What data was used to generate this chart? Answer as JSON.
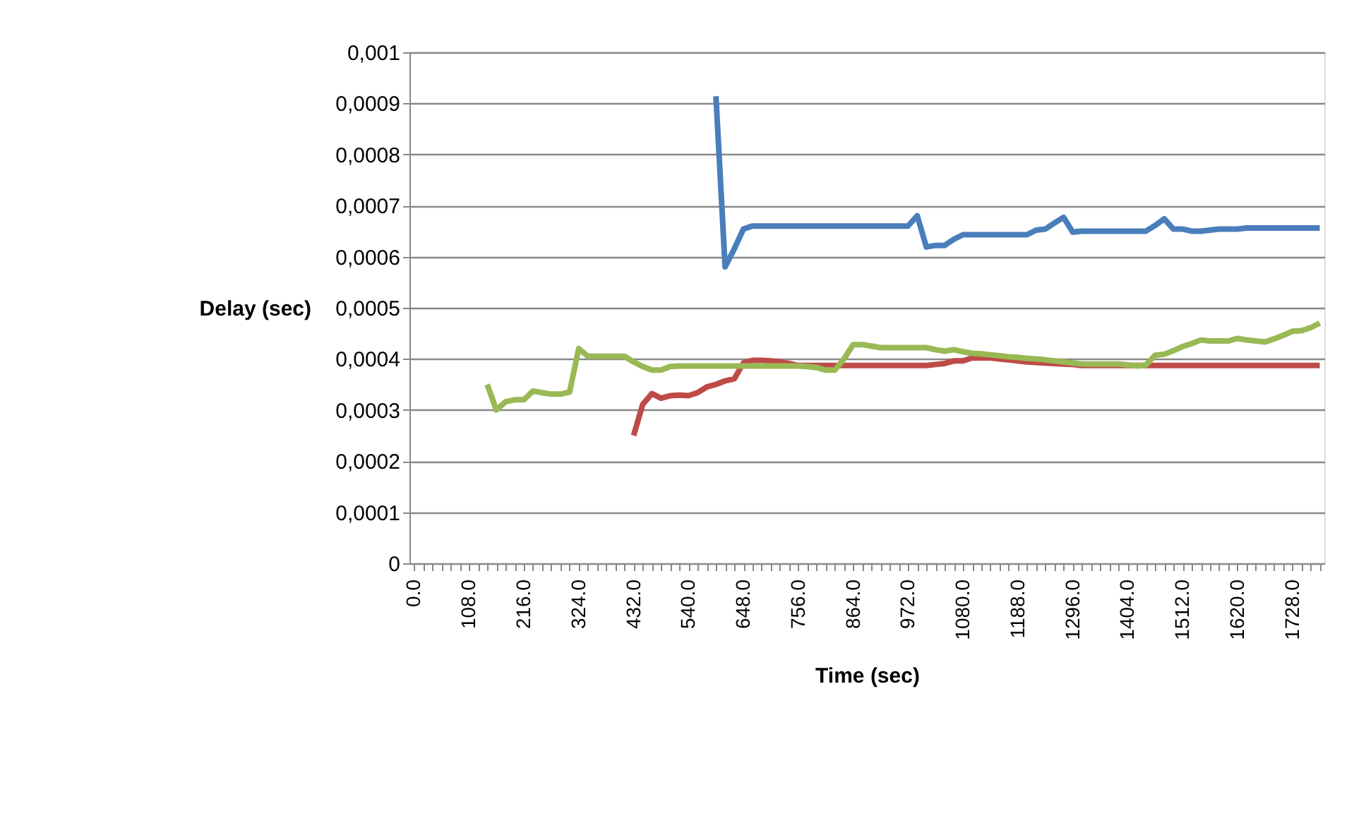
{
  "chart_data": {
    "type": "line",
    "xlabel": "Time (sec)",
    "ylabel": "Delay (sec)",
    "categories": [
      "0.0",
      null,
      null,
      null,
      null,
      null,
      "108.0",
      null,
      null,
      null,
      null,
      null,
      "216.0",
      null,
      null,
      null,
      null,
      null,
      "324.0",
      null,
      null,
      null,
      null,
      null,
      "432.0",
      null,
      null,
      null,
      null,
      null,
      "540.0",
      null,
      null,
      null,
      null,
      null,
      "648.0",
      null,
      null,
      null,
      null,
      null,
      "756.0",
      null,
      null,
      null,
      null,
      null,
      "864.0",
      null,
      null,
      null,
      null,
      null,
      "972.0",
      null,
      null,
      null,
      null,
      null,
      "1080.0",
      null,
      null,
      null,
      null,
      null,
      "1188.0",
      null,
      null,
      null,
      null,
      null,
      "1296.0",
      null,
      null,
      null,
      null,
      null,
      "1404.0",
      null,
      null,
      null,
      null,
      null,
      "1512.0",
      null,
      null,
      null,
      null,
      null,
      "1620.0",
      null,
      null,
      null,
      null,
      null,
      "1728.0",
      null,
      null,
      null
    ],
    "series": [
      {
        "color": "#4a7ebb",
        "values": [
          null,
          null,
          null,
          null,
          null,
          null,
          null,
          null,
          null,
          null,
          null,
          null,
          null,
          null,
          null,
          null,
          null,
          null,
          null,
          null,
          null,
          null,
          null,
          null,
          null,
          null,
          null,
          null,
          null,
          null,
          null,
          null,
          null,
          0.000914,
          0.00058,
          0.000615,
          0.000654,
          0.00066,
          0.00066,
          0.00066,
          0.00066,
          0.00066,
          0.00066,
          0.00066,
          0.00066,
          0.00066,
          0.00066,
          0.00066,
          0.00066,
          0.00066,
          0.00066,
          0.00066,
          0.00066,
          0.00066,
          0.00066,
          0.00068,
          0.000619,
          0.000622,
          0.000622,
          0.000634,
          0.000643,
          0.000643,
          0.000643,
          0.000643,
          0.000643,
          0.000643,
          0.000643,
          0.000643,
          0.000652,
          0.000654,
          0.000666,
          0.000677,
          0.000648,
          0.00065,
          0.00065,
          0.00065,
          0.00065,
          0.00065,
          0.00065,
          0.00065,
          0.00065,
          0.000661,
          0.000674,
          0.000654,
          0.000654,
          0.00065,
          0.00065,
          0.000652,
          0.000654,
          0.000654,
          0.000654,
          0.000656,
          0.000656,
          0.000656,
          0.000656,
          0.000656,
          0.000656,
          0.000656,
          0.000656,
          0.000656
        ]
      },
      {
        "color": "#be4b48",
        "values": [
          null,
          null,
          null,
          null,
          null,
          null,
          null,
          null,
          null,
          null,
          null,
          null,
          null,
          null,
          null,
          null,
          null,
          null,
          null,
          null,
          null,
          null,
          null,
          null,
          0.00025,
          0.000311,
          0.000332,
          0.000323,
          0.000328,
          0.000329,
          0.000328,
          0.000334,
          0.000345,
          0.00035,
          0.000357,
          0.000361,
          0.000392,
          0.000397,
          0.000397,
          0.000396,
          0.000394,
          0.000391,
          0.000387,
          0.000387,
          0.000387,
          0.000387,
          0.000387,
          0.000387,
          0.000387,
          0.000387,
          0.000387,
          0.000387,
          0.000387,
          0.000387,
          0.000387,
          0.000387,
          0.000387,
          0.000389,
          0.000391,
          0.000396,
          0.000396,
          0.000402,
          0.000402,
          0.000402,
          0.0004,
          0.000398,
          0.000396,
          0.000394,
          0.000393,
          0.000392,
          0.000391,
          0.00039,
          0.000389,
          0.000387,
          0.000387,
          0.000387,
          0.000387,
          0.000387,
          0.000387,
          0.000387,
          0.000387,
          0.000387,
          0.000387,
          0.000387,
          0.000387,
          0.000387,
          0.000387,
          0.000387,
          0.000387,
          0.000387,
          0.000387,
          0.000387,
          0.000387,
          0.000387,
          0.000387,
          0.000387,
          0.000387,
          0.000387,
          0.000387,
          0.000387
        ]
      },
      {
        "color": "#98b954",
        "values": [
          null,
          null,
          null,
          null,
          null,
          null,
          null,
          null,
          0.00035,
          0.0003,
          0.000316,
          0.00032,
          0.00032,
          0.000337,
          0.000334,
          0.000331,
          0.000331,
          0.000335,
          0.00042,
          0.000405,
          0.000405,
          0.000405,
          0.000405,
          0.000405,
          0.000394,
          0.000385,
          0.000378,
          0.000378,
          0.000385,
          0.000386,
          0.000386,
          0.000386,
          0.000386,
          0.000386,
          0.000386,
          0.000386,
          0.000386,
          0.000386,
          0.000386,
          0.000386,
          0.000386,
          0.000386,
          0.000386,
          0.000385,
          0.000383,
          0.000378,
          0.000378,
          0.0004,
          0.000428,
          0.000428,
          0.000425,
          0.000422,
          0.000422,
          0.000422,
          0.000422,
          0.000422,
          0.000422,
          0.000418,
          0.000415,
          0.000418,
          0.000414,
          0.000411,
          0.00041,
          0.000408,
          0.000406,
          0.000404,
          0.000403,
          0.000401,
          0.0004,
          0.000398,
          0.000396,
          0.000394,
          0.000392,
          0.00039,
          0.00039,
          0.00039,
          0.00039,
          0.00039,
          0.000388,
          0.000386,
          0.000388,
          0.000407,
          0.000409,
          0.000416,
          0.000424,
          0.00043,
          0.000437,
          0.000435,
          0.000435,
          0.000435,
          0.00044,
          0.000437,
          0.000435,
          0.000433,
          0.000439,
          0.000446,
          0.000454,
          0.000455,
          0.000461,
          0.00047
        ]
      }
    ],
    "ylim": [
      0,
      0.001
    ],
    "yticks": [
      0,
      {
        "value": 0.0001,
        "label": "0,0001"
      },
      {
        "value": 0.0002,
        "label": "0,0002"
      },
      {
        "value": 0.0003,
        "label": "0,0003"
      },
      {
        "value": 0.0004,
        "label": "0,0004"
      },
      {
        "value": 0.0005,
        "label": "0,0005"
      },
      {
        "value": 0.0006,
        "label": "0,0006"
      },
      {
        "value": 0.0007,
        "label": "0,0007"
      },
      {
        "value": 0.0008,
        "label": "0,0008"
      },
      {
        "value": 0.0009,
        "label": "0,0009"
      },
      {
        "value": 0.001,
        "label": "0,001"
      }
    ],
    "grid": "y",
    "marker": "none",
    "line_style": "solid"
  }
}
